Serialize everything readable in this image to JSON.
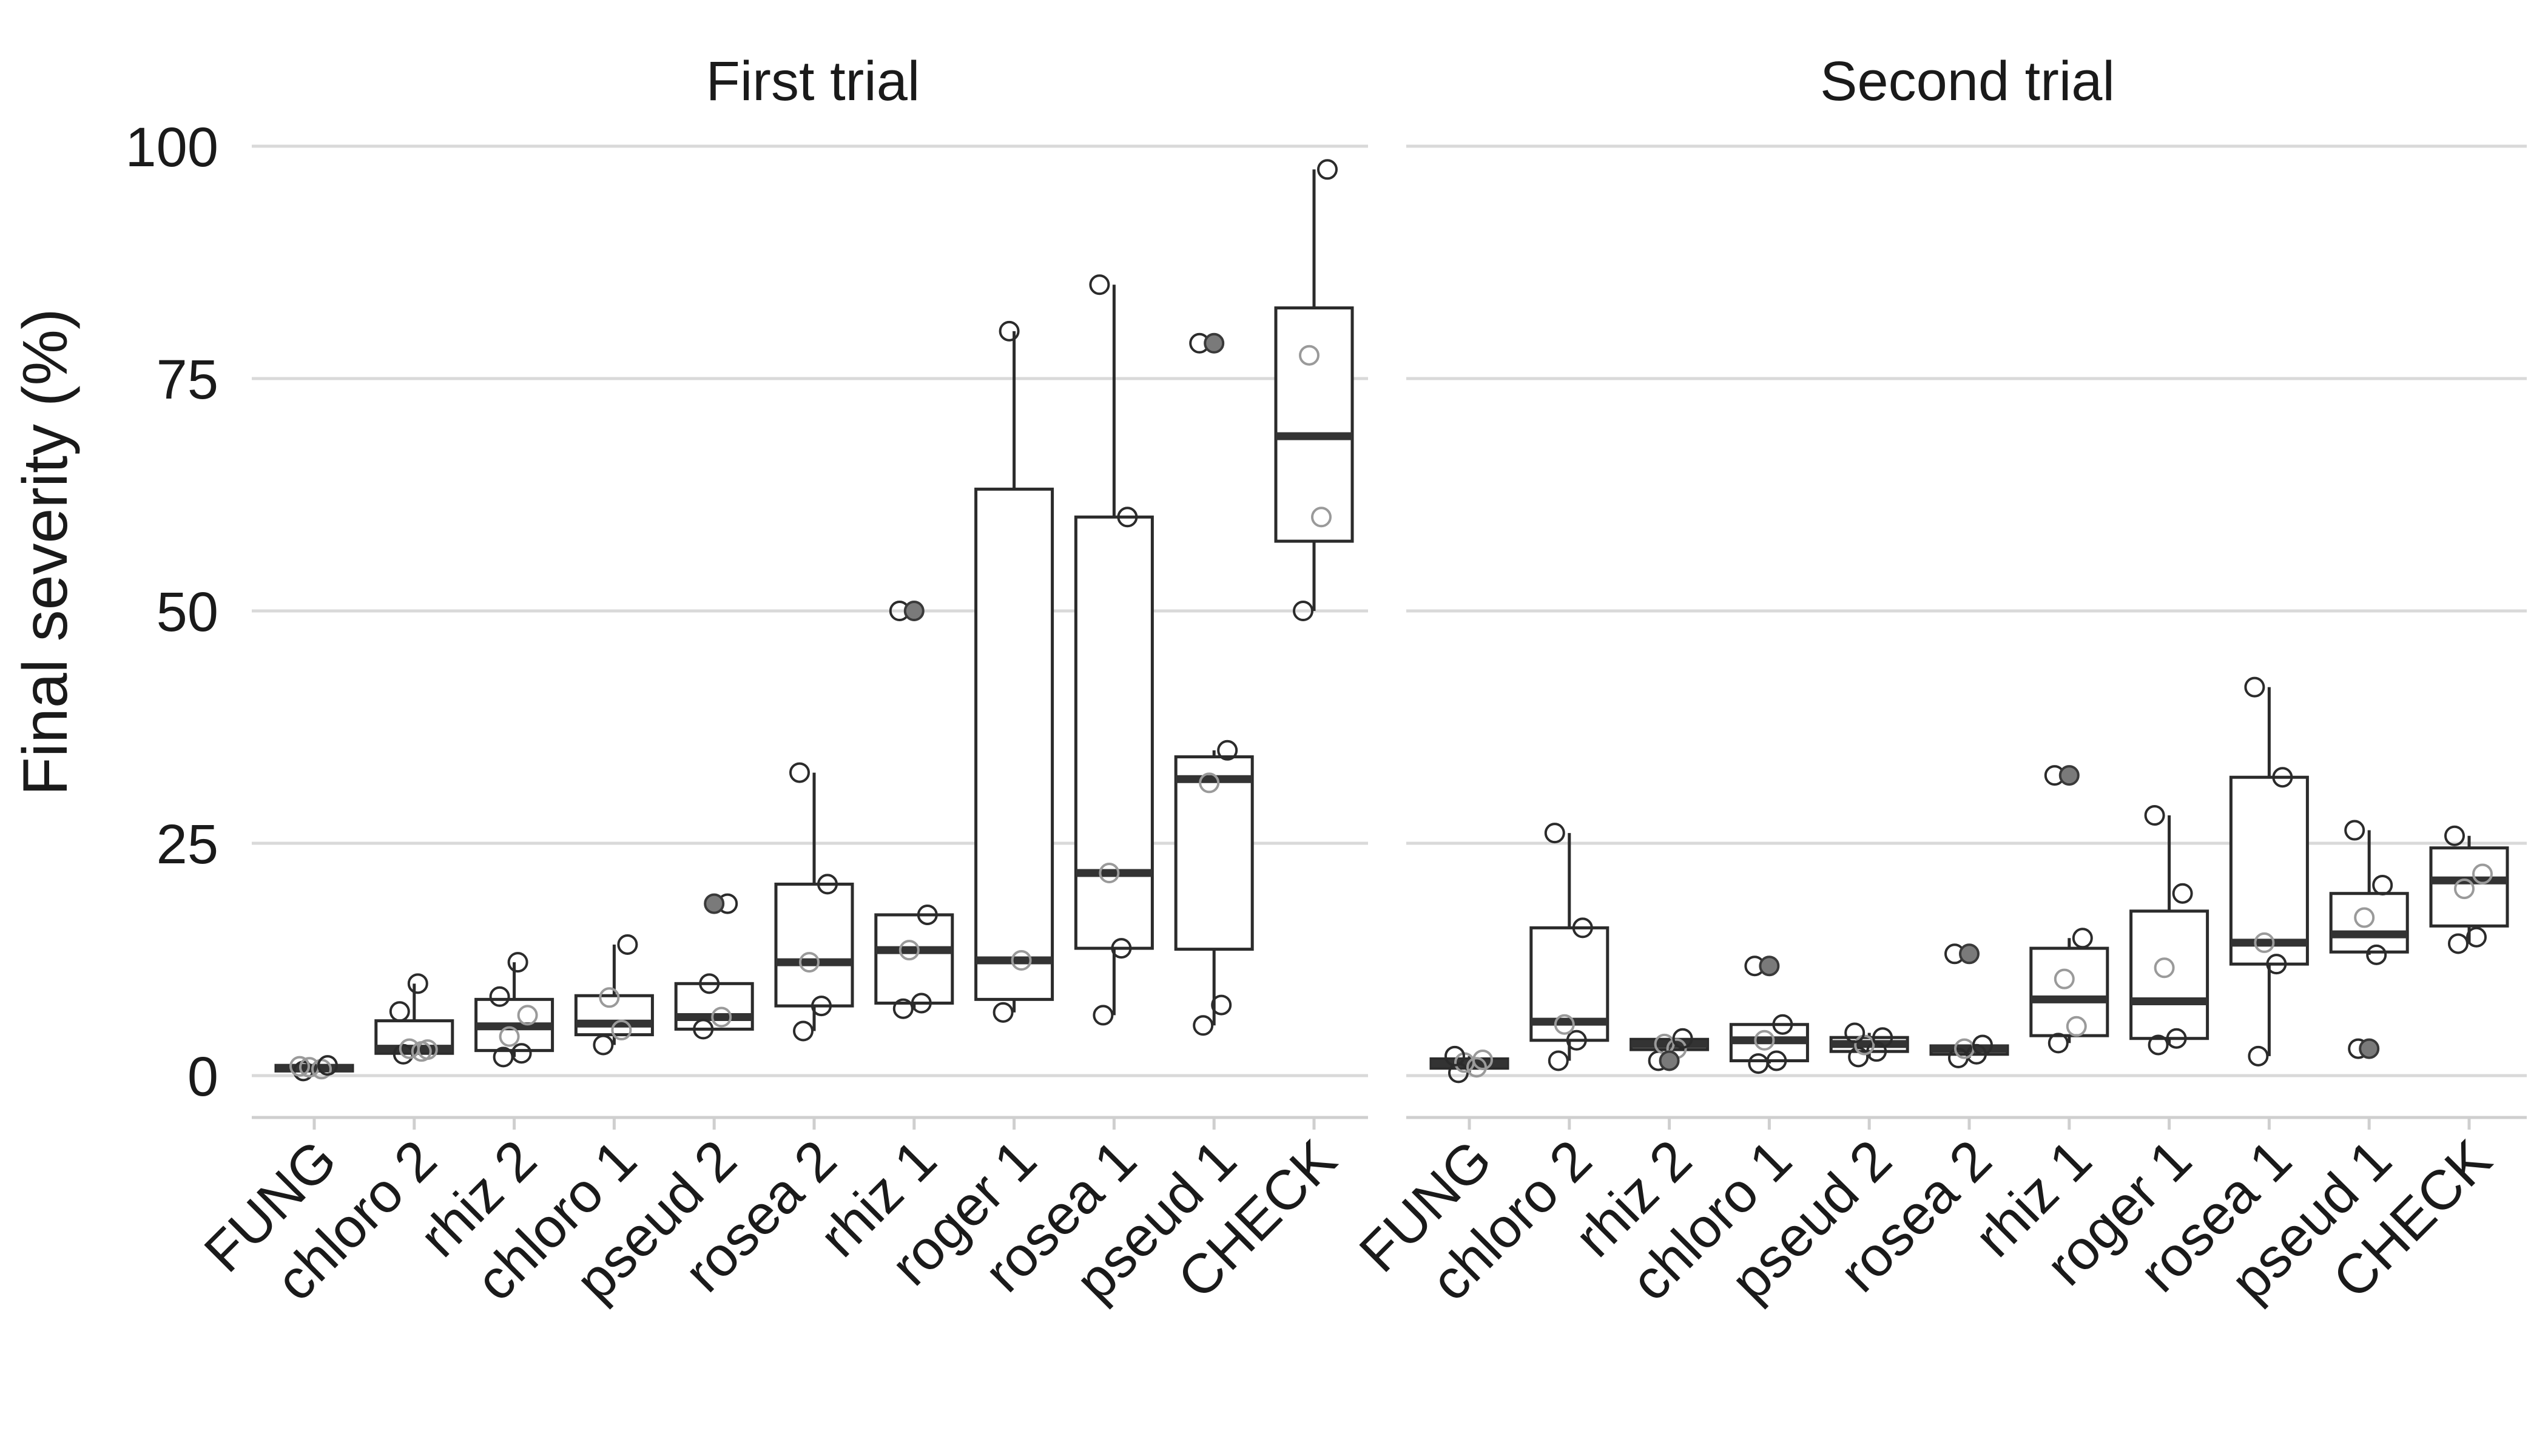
{
  "chart_data": {
    "type": "boxplot",
    "ylabel": "Final severity (%)",
    "ylim": [
      -4,
      106
    ],
    "yticks": [
      0,
      25,
      50,
      75,
      100
    ],
    "categories": [
      "FUNG",
      "chloro 2",
      "rhiz 2",
      "chloro 1",
      "pseud 2",
      "rosea 2",
      "rhiz 1",
      "roger 1",
      "rosea 1",
      "pseud 1",
      "CHECK"
    ],
    "panels": [
      {
        "title": "First trial",
        "boxes": [
          {
            "q1": 0.5,
            "median": 0.8,
            "q3": 1.1,
            "whisker_low": 0.3,
            "whisker_high": 1.3,
            "outliers": []
          },
          {
            "q1": 2.4,
            "median": 2.9,
            "q3": 5.9,
            "whisker_low": 2.2,
            "whisker_high": 9.9,
            "outliers": []
          },
          {
            "q1": 2.7,
            "median": 5.3,
            "q3": 8.2,
            "whisker_low": 2.0,
            "whisker_high": 12.2,
            "outliers": []
          },
          {
            "q1": 4.4,
            "median": 5.6,
            "q3": 8.6,
            "whisker_low": 3.3,
            "whisker_high": 14.1,
            "outliers": []
          },
          {
            "q1": 5.0,
            "median": 6.3,
            "q3": 9.9,
            "whisker_low": 5.0,
            "whisker_high": 9.9,
            "outliers": [
              18.5
            ]
          },
          {
            "q1": 7.5,
            "median": 12.2,
            "q3": 20.6,
            "whisker_low": 4.8,
            "whisker_high": 32.6,
            "outliers": []
          },
          {
            "q1": 7.8,
            "median": 13.5,
            "q3": 17.3,
            "whisker_low": 7.2,
            "whisker_high": 17.3,
            "outliers": [
              50
            ]
          },
          {
            "q1": 8.2,
            "median": 12.4,
            "q3": 63.1,
            "whisker_low": 6.8,
            "whisker_high": 80.1,
            "outliers": []
          },
          {
            "q1": 13.7,
            "median": 21.8,
            "q3": 60.1,
            "whisker_low": 6.5,
            "whisker_high": 85.1,
            "outliers": []
          },
          {
            "q1": 13.6,
            "median": 31.9,
            "q3": 34.3,
            "whisker_low": 5.4,
            "whisker_high": 35.0,
            "outliers": [
              78.8
            ]
          },
          {
            "q1": 57.5,
            "median": 68.8,
            "q3": 82.6,
            "whisker_low": 50.0,
            "whisker_high": 97.5,
            "outliers": []
          }
        ],
        "points": [
          [
            0.5,
            0.7,
            0.9,
            1.1,
            1.0
          ],
          [
            2.3,
            2.6,
            2.9,
            2.8,
            6.9,
            9.9
          ],
          [
            2.0,
            2.4,
            4.2,
            6.5,
            8.5,
            12.2
          ],
          [
            3.3,
            4.9,
            8.4,
            14.1
          ],
          [
            5.0,
            6.3,
            9.9,
            18.5
          ],
          [
            4.8,
            7.5,
            12.2,
            20.6,
            32.6
          ],
          [
            7.2,
            7.8,
            13.5,
            17.3,
            50.0
          ],
          [
            6.8,
            12.4,
            80.1
          ],
          [
            6.5,
            13.7,
            21.8,
            60.1,
            85.1
          ],
          [
            5.4,
            7.6,
            31.5,
            35.0,
            78.8
          ],
          [
            50.0,
            60.1,
            77.5,
            97.5
          ]
        ]
      },
      {
        "title": "Second trial",
        "boxes": [
          {
            "q1": 0.8,
            "median": 1.3,
            "q3": 1.8,
            "whisker_low": 0.3,
            "whisker_high": 2.1,
            "outliers": []
          },
          {
            "q1": 3.8,
            "median": 5.8,
            "q3": 15.9,
            "whisker_low": 1.6,
            "whisker_high": 26.1,
            "outliers": []
          },
          {
            "q1": 2.8,
            "median": 3.4,
            "q3": 3.9,
            "whisker_low": 2.7,
            "whisker_high": 4.0,
            "outliers": [
              1.6
            ]
          },
          {
            "q1": 1.6,
            "median": 3.8,
            "q3": 5.5,
            "whisker_low": 1.3,
            "whisker_high": 5.5,
            "outliers": [
              11.8
            ]
          },
          {
            "q1": 2.6,
            "median": 3.4,
            "q3": 4.1,
            "whisker_low": 2.0,
            "whisker_high": 4.6,
            "outliers": []
          },
          {
            "q1": 2.3,
            "median": 2.9,
            "q3": 3.2,
            "whisker_low": 1.9,
            "whisker_high": 3.3,
            "outliers": [
              13.1
            ]
          },
          {
            "q1": 4.3,
            "median": 8.2,
            "q3": 13.7,
            "whisker_low": 3.5,
            "whisker_high": 14.8,
            "outliers": [
              32.3
            ]
          },
          {
            "q1": 4.0,
            "median": 8.0,
            "q3": 17.7,
            "whisker_low": 3.3,
            "whisker_high": 28.0,
            "outliers": []
          },
          {
            "q1": 12.0,
            "median": 14.3,
            "q3": 32.1,
            "whisker_low": 2.1,
            "whisker_high": 41.8,
            "outliers": []
          },
          {
            "q1": 13.3,
            "median": 15.2,
            "q3": 19.6,
            "whisker_low": 13.0,
            "whisker_high": 26.4,
            "outliers": [
              2.9
            ]
          },
          {
            "q1": 16.1,
            "median": 21.0,
            "q3": 24.5,
            "whisker_low": 14.2,
            "whisker_high": 25.8,
            "outliers": []
          }
        ],
        "points": [
          [
            0.3,
            0.9,
            1.4,
            1.7,
            2.1
          ],
          [
            1.6,
            3.8,
            5.5,
            15.9,
            26.1
          ],
          [
            1.6,
            2.9,
            3.4,
            4.0
          ],
          [
            1.3,
            1.6,
            3.8,
            5.5,
            11.8
          ],
          [
            2.0,
            2.6,
            3.3,
            4.1,
            4.6
          ],
          [
            1.9,
            2.3,
            2.9,
            3.3,
            13.1
          ],
          [
            3.5,
            5.3,
            10.4,
            14.8,
            32.3
          ],
          [
            3.3,
            4.0,
            11.6,
            19.6,
            28.0
          ],
          [
            2.1,
            12.0,
            14.3,
            32.1,
            41.8
          ],
          [
            2.9,
            13.0,
            17.0,
            20.5,
            26.4
          ],
          [
            14.2,
            14.9,
            20.1,
            21.7,
            25.8
          ]
        ]
      }
    ]
  }
}
